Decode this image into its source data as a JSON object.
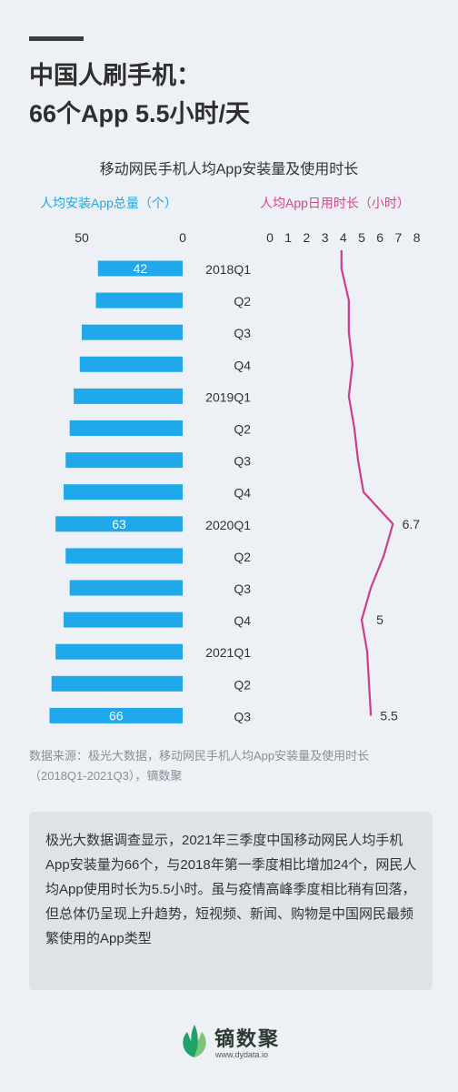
{
  "header": {
    "title_line1": "中国人刷手机：",
    "title_line2": "66个App  5.5小时/天"
  },
  "chart_data": {
    "type": "bar+line",
    "title": "移动网民手机人均App安装量及使用时长",
    "categories": [
      "2018Q1",
      "Q2",
      "Q3",
      "Q4",
      "2019Q1",
      "Q2",
      "Q3",
      "Q4",
      "2020Q1",
      "Q2",
      "Q3",
      "Q4",
      "2021Q1",
      "Q2",
      "Q3"
    ],
    "bar_series": {
      "name": "人均安装App总量（个）",
      "color": "#1fa8ea",
      "values": [
        42,
        43,
        50,
        51,
        54,
        56,
        58,
        59,
        63,
        58,
        56,
        59,
        63,
        65,
        66
      ],
      "axis_ticks": [
        "50",
        "0"
      ],
      "xlim": [
        0,
        75
      ],
      "data_labels": [
        {
          "index": 0,
          "text": "42"
        },
        {
          "index": 8,
          "text": "63"
        },
        {
          "index": 14,
          "text": "66"
        }
      ]
    },
    "line_series": {
      "name": "人均App日用时长（小时）",
      "color": "#cf3c8a",
      "values": [
        3.9,
        4.3,
        4.3,
        4.5,
        4.3,
        4.6,
        4.8,
        5.1,
        6.7,
        6.2,
        5.5,
        5.0,
        5.3,
        5.4,
        5.5
      ],
      "axis_ticks": [
        "0",
        "1",
        "2",
        "3",
        "4",
        "5",
        "6",
        "7",
        "8"
      ],
      "xlim": [
        0,
        8
      ],
      "data_labels": [
        {
          "index": 8,
          "text": "6.7"
        },
        {
          "index": 11,
          "text": "5"
        },
        {
          "index": 14,
          "text": "5.5"
        }
      ]
    }
  },
  "source": {
    "line1": "数据来源：极光大数据，移动网民手机人均App安装量及使用时长",
    "line2": "（2018Q1-2021Q3），镝数聚"
  },
  "summary": {
    "text": "极光大数据调查显示，2021年三季度中国移动网民人均手机App安装量为66个，与2018年第一季度相比增加24个，网民人均App使用时长为5.5小时。虽与疫情高峰季度相比稍有回落，但总体仍呈现上升趋势，短视频、新闻、购物是中国网民最频繁使用的App类型"
  },
  "logo": {
    "name": "镝数聚",
    "url": "www.dydata.io",
    "colors": [
      "#1fa26a",
      "#7cc576"
    ]
  }
}
